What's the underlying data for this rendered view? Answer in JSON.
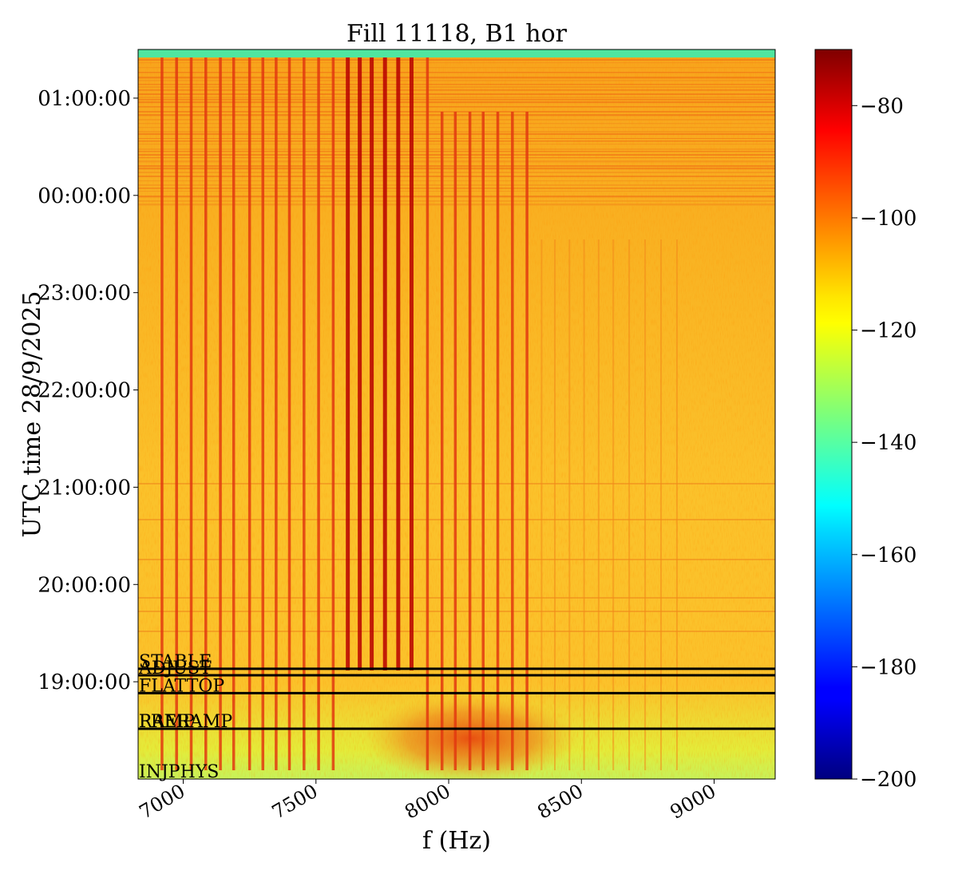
{
  "chart_data": {
    "type": "heatmap",
    "title": "Fill 11118, B1 hor",
    "xlabel": "f (Hz)",
    "ylabel": "UTC time 28/9/2025",
    "xlim": [
      6830,
      9230
    ],
    "ylim": [
      "18:00:00",
      "01:30:00"
    ],
    "x_ticks": [
      "7000",
      "7500",
      "8000",
      "8500",
      "9000"
    ],
    "x_tick_values": [
      7000,
      7500,
      8000,
      8500,
      9000
    ],
    "y_ticks": [
      "19:00:00",
      "20:00:00",
      "21:00:00",
      "22:00:00",
      "23:00:00",
      "00:00:00",
      "01:00:00"
    ],
    "y_tick_hours": [
      19,
      20,
      21,
      22,
      23,
      24,
      25
    ],
    "colorbar": {
      "colormap": "jet",
      "vmin": -200,
      "vmax": -70,
      "ticks": [
        "−200",
        "−180",
        "−160",
        "−140",
        "−120",
        "−100",
        "−80"
      ],
      "tick_values": [
        -200,
        -180,
        -160,
        -140,
        -120,
        -100,
        -80
      ]
    },
    "grid": false,
    "mode_markers": [
      {
        "label": "STABLE",
        "time": "19:08:00"
      },
      {
        "label": "ADJUST",
        "time": "19:04:00"
      },
      {
        "label": "FLATTOP",
        "time": "18:53:00"
      },
      {
        "label": "RAMP",
        "time": "18:31:00"
      },
      {
        "label": "PRERAMP",
        "time": "18:31:00"
      },
      {
        "label": "INJPHYS",
        "time": "18:00:00"
      }
    ],
    "spectral_lines_hz": [
      6920,
      6975,
      7030,
      7085,
      7140,
      7190,
      7250,
      7300,
      7350,
      7400,
      7455,
      7510,
      7565,
      7620,
      7665,
      7710,
      7760,
      7810,
      7860,
      7920,
      7975,
      8025,
      8080,
      8130,
      8185,
      8240,
      8295,
      8350,
      8400,
      8455,
      8510,
      8565,
      8620,
      8680,
      8740,
      8800,
      8860
    ]
  }
}
